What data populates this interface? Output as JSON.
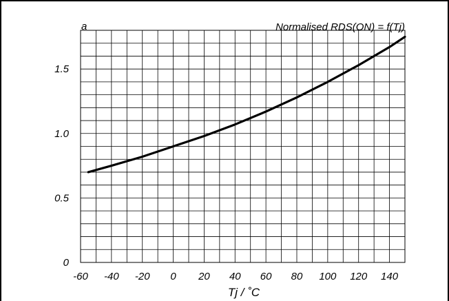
{
  "chart_data": {
    "type": "line",
    "title": "Normalised RDS(ON) = f(Tj)",
    "ylabel": "a",
    "xlabel": "Tj / ˚C",
    "xlim": [
      -60,
      150
    ],
    "ylim": [
      0,
      1.8
    ],
    "x_ticks": [
      -60,
      -40,
      -20,
      0,
      20,
      40,
      60,
      80,
      100,
      120,
      140
    ],
    "x_tick_labels": [
      "-60",
      "-40",
      "-20",
      "0",
      "20",
      "40",
      "60",
      "80",
      "100",
      "120",
      "140"
    ],
    "y_ticks": [
      0,
      0.5,
      1.0,
      1.5
    ],
    "y_tick_labels": [
      "0",
      "0.5",
      "1.0",
      "1.5"
    ],
    "grid": true,
    "series": [
      {
        "color": "#000000",
        "x": [
          -55,
          -40,
          -20,
          0,
          20,
          40,
          60,
          80,
          100,
          120,
          140,
          150
        ],
        "y": [
          0.7,
          0.75,
          0.82,
          0.9,
          0.98,
          1.07,
          1.17,
          1.28,
          1.4,
          1.53,
          1.67,
          1.75
        ]
      }
    ]
  }
}
